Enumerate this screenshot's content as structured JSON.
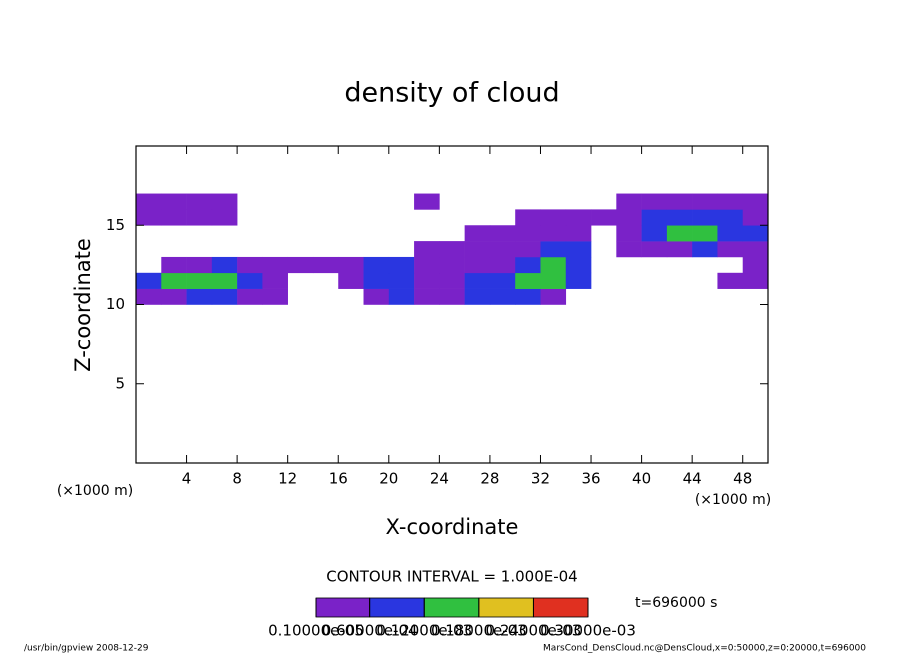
{
  "chart_data": {
    "type": "contour",
    "title": "density of cloud",
    "x_label": "X-coordinate",
    "y_label": "Z-coordinate",
    "x_unit": "(×1000 m)",
    "xlim": [
      0,
      50
    ],
    "ylim": [
      0,
      20
    ],
    "xticks": [
      4,
      8,
      12,
      16,
      20,
      24,
      28,
      32,
      36,
      40,
      44,
      48
    ],
    "yticks": [
      5,
      10,
      15
    ],
    "x": [
      1,
      3,
      5,
      7,
      9,
      11,
      13,
      15,
      17,
      19,
      21,
      23,
      25,
      27,
      29,
      31,
      33,
      35,
      37,
      39,
      41,
      43,
      45,
      47,
      49
    ],
    "z": [
      10.5,
      11.5,
      12.5,
      13.5,
      14.5,
      15.5,
      16.5
    ],
    "values": [
      [
        3e-05,
        3e-05,
        8e-05,
        8e-05,
        3e-05,
        3e-05,
        null,
        null,
        null,
        3e-05,
        8e-05,
        3e-05,
        3e-05,
        8e-05,
        8e-05,
        8e-05,
        3e-05,
        null,
        null,
        null,
        null,
        null,
        null,
        null,
        null
      ],
      [
        8e-05,
        0.00014,
        0.00014,
        0.00014,
        8e-05,
        3e-05,
        null,
        null,
        3e-05,
        8e-05,
        8e-05,
        3e-05,
        3e-05,
        8e-05,
        8e-05,
        0.00014,
        0.00014,
        8e-05,
        null,
        null,
        null,
        null,
        null,
        3e-05,
        3e-05
      ],
      [
        null,
        3e-05,
        3e-05,
        8e-05,
        3e-05,
        3e-05,
        3e-05,
        3e-05,
        3e-05,
        8e-05,
        8e-05,
        3e-05,
        3e-05,
        3e-05,
        3e-05,
        8e-05,
        0.00014,
        8e-05,
        null,
        null,
        null,
        null,
        null,
        null,
        3e-05
      ],
      [
        null,
        null,
        null,
        null,
        null,
        null,
        null,
        null,
        null,
        null,
        null,
        3e-05,
        3e-05,
        3e-05,
        3e-05,
        3e-05,
        8e-05,
        8e-05,
        null,
        3e-05,
        3e-05,
        3e-05,
        8e-05,
        3e-05,
        3e-05
      ],
      [
        null,
        null,
        null,
        null,
        null,
        null,
        null,
        null,
        null,
        null,
        null,
        null,
        null,
        3e-05,
        3e-05,
        3e-05,
        3e-05,
        3e-05,
        null,
        3e-05,
        8e-05,
        0.00014,
        0.00014,
        8e-05,
        8e-05
      ],
      [
        3e-05,
        3e-05,
        3e-05,
        3e-05,
        null,
        null,
        null,
        null,
        null,
        null,
        null,
        null,
        null,
        null,
        null,
        3e-05,
        3e-05,
        3e-05,
        3e-05,
        3e-05,
        8e-05,
        8e-05,
        8e-05,
        8e-05,
        3e-05
      ],
      [
        3e-05,
        3e-05,
        3e-05,
        3e-05,
        null,
        null,
        null,
        null,
        null,
        null,
        null,
        3e-05,
        null,
        null,
        null,
        null,
        null,
        null,
        null,
        3e-05,
        3e-05,
        3e-05,
        3e-05,
        3e-05,
        3e-05
      ]
    ],
    "levels": [
      {
        "value": 1e-06,
        "label": "0.10000e-05"
      },
      {
        "value": 6e-05,
        "label": "0.60000e-04"
      },
      {
        "value": 0.00012,
        "label": "0.12000e-03"
      },
      {
        "value": 0.00018,
        "label": "0.18000e-03"
      },
      {
        "value": 0.00024,
        "label": "0.24000e-03"
      },
      {
        "value": 0.0003,
        "label": "0.30000e-03"
      }
    ],
    "colors": [
      "#7a22c8",
      "#2a36e0",
      "#30c040",
      "#e0c020",
      "#e03020"
    ],
    "contour_interval": "CONTOUR INTERVAL = 1.000E-04",
    "time_label": "t=696000 s",
    "footer_left": "/usr/bin/gpview   2008-12-29",
    "footer_right": "MarsCond_DensCloud.nc@DensCloud,x=0:50000,z=0:20000,t=696000"
  }
}
